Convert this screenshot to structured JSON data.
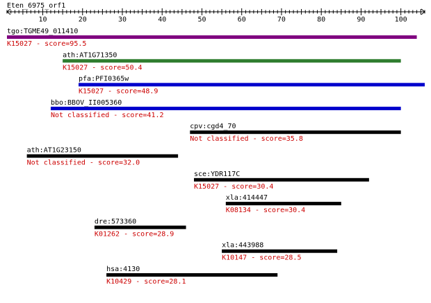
{
  "query": {
    "name": "Eten_6975_orf1"
  },
  "ruler": {
    "min": 1,
    "max": 106,
    "ticks": [
      10,
      20,
      30,
      40,
      50,
      60,
      70,
      80,
      90,
      100
    ]
  },
  "colors": {
    "text": "#000000",
    "label_red": "#cc0000",
    "purple": "#800080",
    "green": "#2e7d2e",
    "blue": "#0000cc",
    "black": "#000000"
  },
  "hits": [
    {
      "name": "tgo:TGME49_011410",
      "annotation": "K15027 - score=95.5",
      "start": 1,
      "end": 104,
      "color": "purple"
    },
    {
      "name": "ath:AT1G71350",
      "annotation": "K15027 - score=50.4",
      "start": 15,
      "end": 100,
      "color": "green"
    },
    {
      "name": "pfa:PFI0365w",
      "annotation": "K15027 - score=48.9",
      "start": 19,
      "end": 106,
      "color": "blue"
    },
    {
      "name": "bbo:BBOV_II005360",
      "annotation": "Not classified - score=41.2",
      "start": 12,
      "end": 100,
      "color": "blue"
    },
    {
      "name": "cpv:cgd4_70",
      "annotation": "Not classified - score=35.8",
      "start": 47,
      "end": 100,
      "color": "black"
    },
    {
      "name": "ath:AT1G23150",
      "annotation": "Not classified - score=32.0",
      "start": 6,
      "end": 44,
      "color": "black"
    },
    {
      "name": "sce:YDR117C",
      "annotation": "K15027 - score=30.4",
      "start": 48,
      "end": 92,
      "color": "black"
    },
    {
      "name": "xla:414447",
      "annotation": "K08134 - score=30.4",
      "start": 56,
      "end": 85,
      "color": "black"
    },
    {
      "name": "dre:573360",
      "annotation": "K01262 - score=28.9",
      "start": 23,
      "end": 46,
      "color": "black"
    },
    {
      "name": "xla:443988",
      "annotation": "K10147 - score=28.5",
      "start": 55,
      "end": 84,
      "color": "black"
    },
    {
      "name": "hsa:4130",
      "annotation": "K10429 - score=28.1",
      "start": 26,
      "end": 69,
      "color": "black"
    }
  ]
}
